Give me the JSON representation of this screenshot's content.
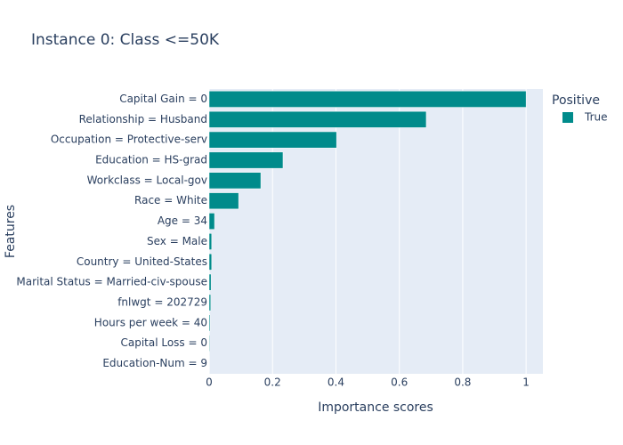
{
  "chart_data": {
    "type": "bar",
    "orientation": "h",
    "title": "Instance 0: Class <=50K",
    "x_label": "Importance scores",
    "y_label": "Features",
    "categories": [
      "Capital Gain = 0",
      "Relationship = Husband",
      "Occupation = Protective-serv",
      "Education = HS-grad",
      "Workclass = Local-gov",
      "Race = White",
      "Age = 34",
      "Sex = Male",
      "Country = United-States",
      "Marital Status = Married-civ-spouse",
      "fnlwgt = 202729",
      "Hours per week = 40",
      "Capital Loss = 0",
      "Education-Num = 9"
    ],
    "series": [
      {
        "name": "True",
        "color": "#008b8b",
        "values": [
          1,
          0.685,
          0.402,
          0.233,
          0.163,
          0.093,
          0.017,
          0.008,
          0.008,
          0.006,
          0.005,
          0.003,
          0.002,
          0.001
        ]
      }
    ],
    "legend_title": "Positive",
    "xlim": [
      0,
      1.053
    ],
    "xticks": [
      0,
      0.2,
      0.4,
      0.6,
      0.8,
      1
    ],
    "grid": true
  }
}
